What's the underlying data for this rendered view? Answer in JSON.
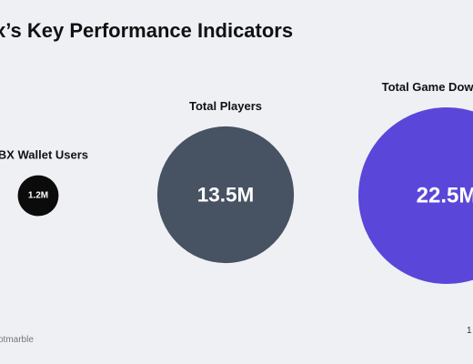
{
  "title": "x’s Key Performance Indicators",
  "source": "otmarble",
  "page_mark": "1",
  "chart_data": {
    "type": "bubble",
    "title": "x’s Key Performance Indicators",
    "unit": "M",
    "items": [
      {
        "label": "MBX Wallet Users",
        "value": 1.2,
        "display": "1.2M",
        "color": "#0b0b0b"
      },
      {
        "label": "Total Players",
        "value": 13.5,
        "display": "13.5M",
        "color": "#475262"
      },
      {
        "label": "Total Game Downloads",
        "value": 22.5,
        "display": "22.5M",
        "color": "#5a46d8"
      }
    ]
  }
}
